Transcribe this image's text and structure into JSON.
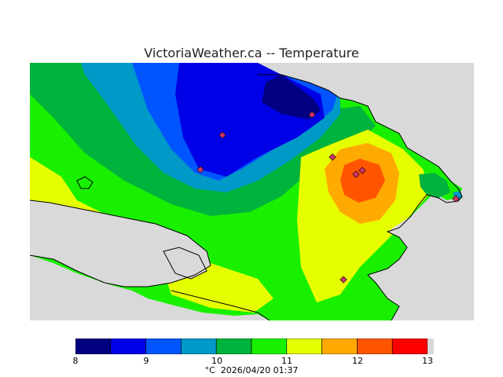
{
  "title": "VictoriaWeather.ca -- Temperature",
  "legend": {
    "ticks": [
      "8",
      "9",
      "10",
      "11",
      "12",
      "13"
    ],
    "bins": [
      {
        "color": "#000080"
      },
      {
        "color": "#0000e6"
      },
      {
        "color": "#0055ff"
      },
      {
        "color": "#0099c8"
      },
      {
        "color": "#00b33c"
      },
      {
        "color": "#19f000"
      },
      {
        "color": "#e6ff00"
      },
      {
        "color": "#ffaa00"
      },
      {
        "color": "#ff5500"
      },
      {
        "color": "#ff0000"
      }
    ],
    "unit": "°C",
    "timestamp": "2026/04/20 01:37"
  },
  "colors": {
    "water": "#d9d9d9",
    "station": "#cc3366"
  }
}
